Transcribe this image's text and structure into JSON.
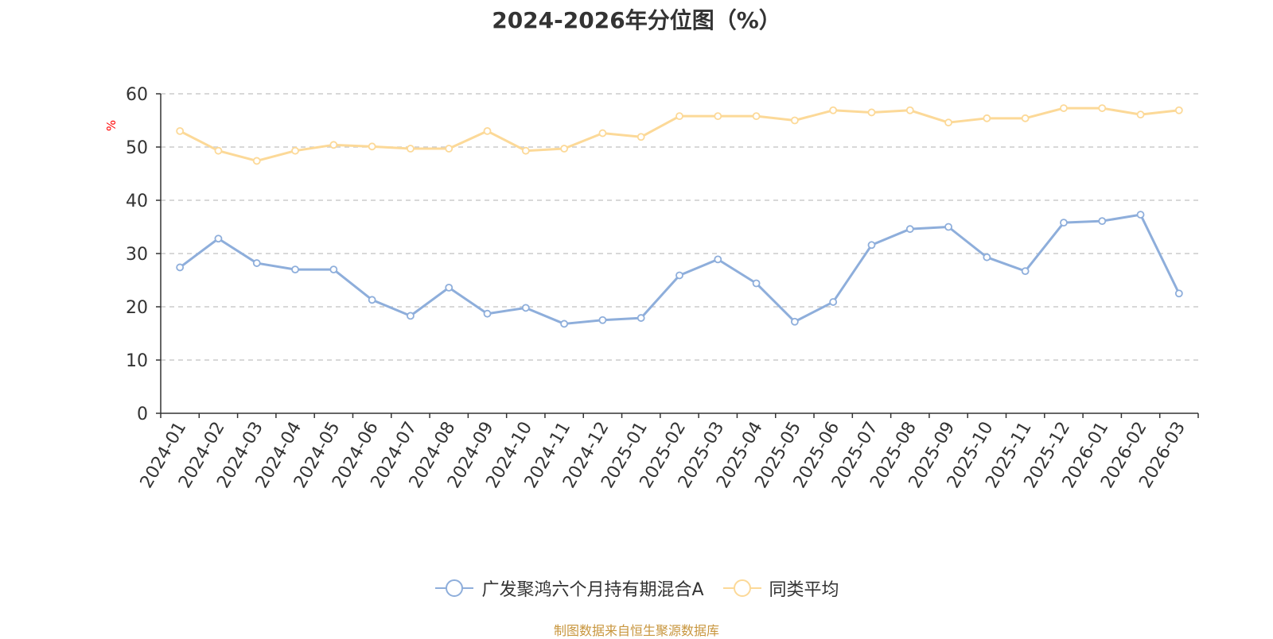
{
  "chart_data": {
    "type": "line",
    "title": "2024-2026年分位图（%）",
    "ylabel": "%",
    "xlabel": "",
    "ylim": [
      0,
      60
    ],
    "yticks": [
      0,
      10,
      20,
      30,
      40,
      50,
      60
    ],
    "grid": true,
    "legend_position": "bottom",
    "categories": [
      "2024-01",
      "2024-02",
      "2024-03",
      "2024-04",
      "2024-05",
      "2024-06",
      "2024-07",
      "2024-08",
      "2024-09",
      "2024-10",
      "2024-11",
      "2024-12",
      "2025-01",
      "2025-02",
      "2025-03",
      "2025-04",
      "2025-05",
      "2025-06",
      "2025-07",
      "2025-08",
      "2025-09",
      "2025-10",
      "2025-11",
      "2025-12",
      "2026-01",
      "2026-02",
      "2026-03"
    ],
    "series": [
      {
        "name": "广发聚鸿六个月持有期混合A",
        "color": "#8eaedb",
        "values": [
          27.4,
          32.8,
          28.2,
          27.0,
          27.0,
          21.3,
          18.3,
          23.6,
          18.7,
          19.8,
          16.8,
          17.5,
          17.9,
          25.9,
          28.9,
          24.4,
          17.2,
          20.9,
          31.6,
          34.6,
          35.0,
          29.3,
          26.7,
          35.8,
          36.1,
          37.3,
          22.5
        ]
      },
      {
        "name": "同类平均",
        "color": "#fcd998",
        "values": [
          53.0,
          49.3,
          47.4,
          49.3,
          50.4,
          50.1,
          49.7,
          49.7,
          53.0,
          49.3,
          49.7,
          52.6,
          51.9,
          55.8,
          55.8,
          55.8,
          55.0,
          56.9,
          56.5,
          56.9,
          54.6,
          55.4,
          55.4,
          57.3,
          57.3,
          56.1,
          56.9
        ]
      }
    ]
  },
  "source": "制图数据来自恒生聚源数据库",
  "colors": {
    "axis": "#333333",
    "grid": "#cccccc",
    "ylabel": "#ff0000",
    "source": "#c8963e"
  }
}
